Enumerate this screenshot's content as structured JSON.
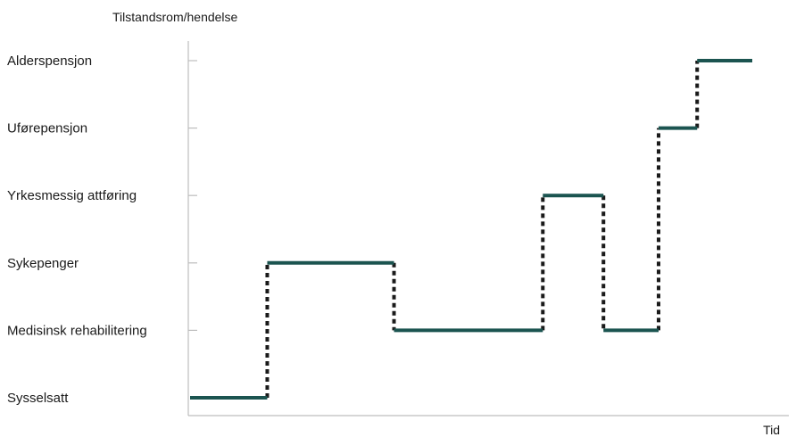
{
  "chart_data": {
    "type": "line",
    "subtype": "step",
    "ylabel": "Tilstandsrom/hendelse",
    "xlabel": "Tid",
    "categories": [
      "Sysselsatt",
      "Medisinsk rehabilitering",
      "Sykepenger",
      "Yrkesmessig attføring",
      "Uførepensjon",
      "Alderspensjon"
    ],
    "x_ticks_shown": false,
    "grid": false,
    "colors": {
      "state_line": "#1b5450",
      "transition_line": "#1a1a1a",
      "axis": "#bdbdbd"
    },
    "states": [
      {
        "from": 0,
        "to": 0.14,
        "state": "Sysselsatt"
      },
      {
        "from": 0.14,
        "to": 0.37,
        "state": "Sykepenger"
      },
      {
        "from": 0.37,
        "to": 0.64,
        "state": "Medisinsk rehabilitering"
      },
      {
        "from": 0.64,
        "to": 0.75,
        "state": "Yrkesmessig attføring"
      },
      {
        "from": 0.75,
        "to": 0.85,
        "state": "Medisinsk rehabilitering"
      },
      {
        "from": 0.85,
        "to": 0.92,
        "state": "Uførepensjon"
      },
      {
        "from": 0.92,
        "to": 1.02,
        "state": "Alderspensjon"
      }
    ]
  }
}
